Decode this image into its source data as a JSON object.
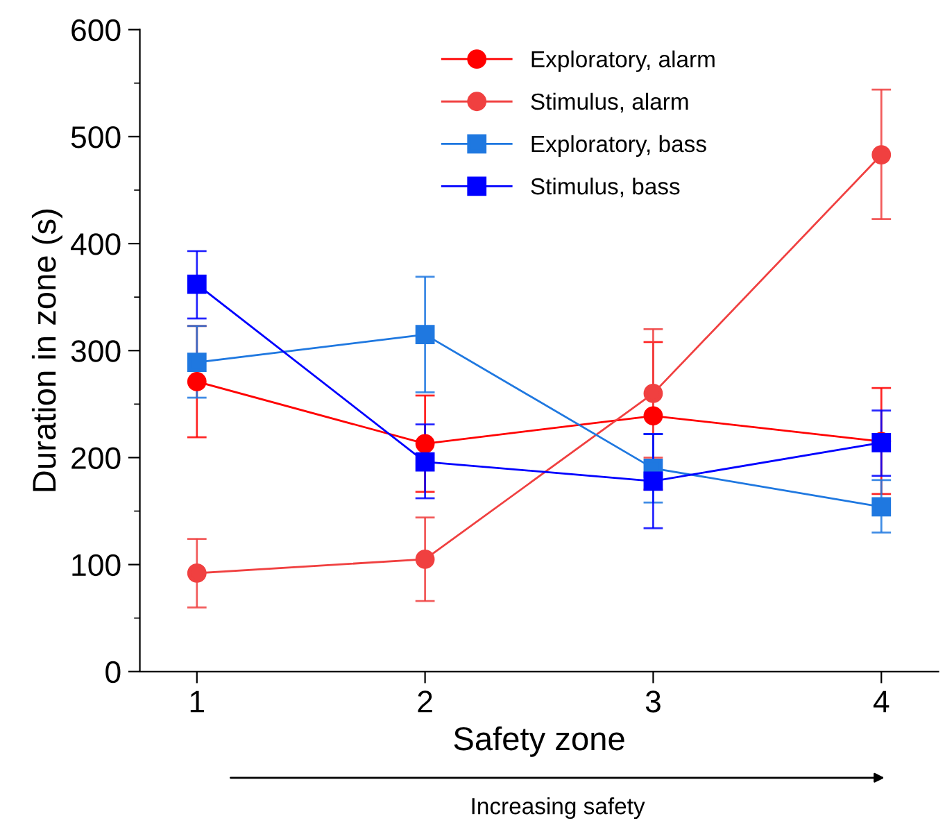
{
  "chart_data": {
    "type": "line",
    "xlabel": "Safety zone",
    "ylabel": "Duration in zone (s)",
    "x": [
      1,
      2,
      3,
      4
    ],
    "xlim": [
      0.75,
      4.25
    ],
    "xticks": [
      1,
      2,
      3,
      4
    ],
    "ylim": [
      0,
      600
    ],
    "yticks": [
      0,
      100,
      200,
      300,
      400,
      500,
      600
    ],
    "legend": "top",
    "grid": false,
    "series": [
      {
        "name": "Exploratory, alarm",
        "color": "#ff0000",
        "marker": "circle",
        "values": [
          271,
          213,
          239,
          215
        ],
        "errors": [
          [
            219,
            323
          ],
          [
            168,
            258
          ],
          [
            170,
            308
          ],
          [
            166,
            265
          ]
        ]
      },
      {
        "name": "Stimulus, alarm",
        "color": "#f04040",
        "marker": "circle",
        "values": [
          92,
          105,
          260,
          483
        ],
        "errors": [
          [
            60,
            124
          ],
          [
            66,
            144
          ],
          [
            200,
            320
          ],
          [
            423,
            544
          ]
        ]
      },
      {
        "name": "Exploratory, bass",
        "color": "#1f78e0",
        "marker": "square",
        "values": [
          289,
          315,
          190,
          154
        ],
        "errors": [
          [
            256,
            323
          ],
          [
            261,
            369
          ],
          [
            158,
            222
          ],
          [
            130,
            179
          ]
        ]
      },
      {
        "name": "Stimulus, bass",
        "color": "#0000ff",
        "marker": "square",
        "values": [
          362,
          196,
          178,
          214
        ],
        "errors": [
          [
            330,
            393
          ],
          [
            162,
            231
          ],
          [
            134,
            222
          ],
          [
            183,
            244
          ]
        ]
      }
    ],
    "annotations": [
      "Increasing safety"
    ]
  }
}
